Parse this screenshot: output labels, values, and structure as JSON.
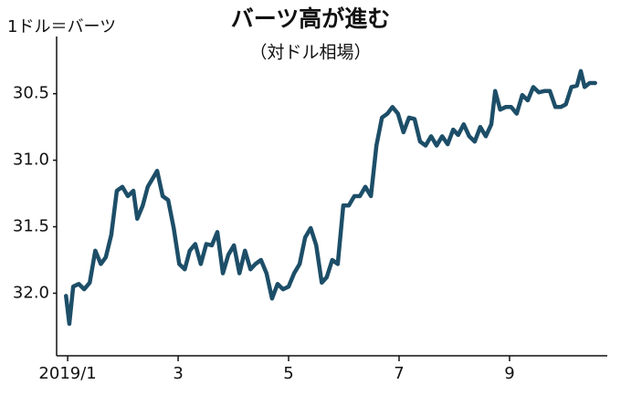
{
  "chart_data": {
    "type": "line",
    "title": "バーツ高が進む",
    "subtitle": "（対ドル相場）",
    "y_label": "1ドル＝バーツ",
    "color": "#1d4e68",
    "x": [
      0.97,
      1.03,
      1.1,
      1.2,
      1.3,
      1.4,
      1.5,
      1.6,
      1.69,
      1.79,
      1.89,
      1.99,
      2.09,
      2.19,
      2.26,
      2.36,
      2.45,
      2.55,
      2.62,
      2.72,
      2.82,
      2.92,
      3.02,
      3.12,
      3.21,
      3.31,
      3.41,
      3.51,
      3.61,
      3.71,
      3.81,
      3.91,
      4.01,
      4.11,
      4.21,
      4.31,
      4.4,
      4.5,
      4.6,
      4.7,
      4.8,
      4.9,
      5.0,
      5.1,
      5.2,
      5.3,
      5.4,
      5.5,
      5.6,
      5.69,
      5.79,
      5.89,
      5.99,
      6.09,
      6.19,
      6.29,
      6.39,
      6.49,
      6.59,
      6.69,
      6.79,
      6.88,
      6.98,
      7.08,
      7.18,
      7.28,
      7.38,
      7.48,
      7.58,
      7.68,
      7.78,
      7.88,
      7.98,
      8.07,
      8.17,
      8.27,
      8.37,
      8.47,
      8.57,
      8.67,
      8.74,
      8.83,
      8.93,
      9.03,
      9.13,
      9.23,
      9.33,
      9.43,
      9.53,
      9.63,
      9.73,
      9.83,
      9.93,
      10.02,
      10.12,
      10.22,
      10.29,
      10.36,
      10.45,
      10.55
    ],
    "values": [
      32.02,
      32.23,
      31.95,
      31.93,
      31.97,
      31.92,
      31.68,
      31.78,
      31.73,
      31.56,
      31.23,
      31.2,
      31.27,
      31.23,
      31.44,
      31.34,
      31.2,
      31.13,
      31.08,
      31.27,
      31.3,
      31.51,
      31.78,
      31.82,
      31.68,
      31.63,
      31.78,
      31.63,
      31.64,
      31.54,
      31.85,
      31.71,
      31.64,
      31.85,
      31.68,
      31.82,
      31.78,
      31.75,
      31.85,
      32.04,
      31.93,
      31.97,
      31.95,
      31.85,
      31.78,
      31.58,
      31.51,
      31.64,
      31.92,
      31.88,
      31.75,
      31.78,
      31.34,
      31.34,
      31.27,
      31.27,
      31.2,
      31.27,
      30.89,
      30.68,
      30.65,
      30.6,
      30.65,
      30.79,
      30.68,
      30.69,
      30.86,
      30.89,
      30.82,
      30.89,
      30.82,
      30.88,
      30.77,
      30.81,
      30.73,
      30.82,
      30.86,
      30.75,
      30.82,
      30.73,
      30.48,
      30.62,
      30.6,
      30.6,
      30.65,
      30.51,
      30.55,
      30.45,
      30.49,
      30.48,
      30.48,
      30.6,
      30.6,
      30.58,
      30.45,
      30.44,
      30.33,
      30.45,
      30.42,
      30.42
    ],
    "xlim": [
      0.8,
      10.77
    ],
    "xticks": [
      {
        "value": 1,
        "label": "2019/1"
      },
      3,
      5,
      7,
      9
    ],
    "ylim": [
      32.47,
      30.07
    ],
    "yticks": [
      30.5,
      {
        "value": 31,
        "label": "31.0"
      },
      31.5,
      {
        "value": 32,
        "label": "32.0"
      }
    ]
  }
}
